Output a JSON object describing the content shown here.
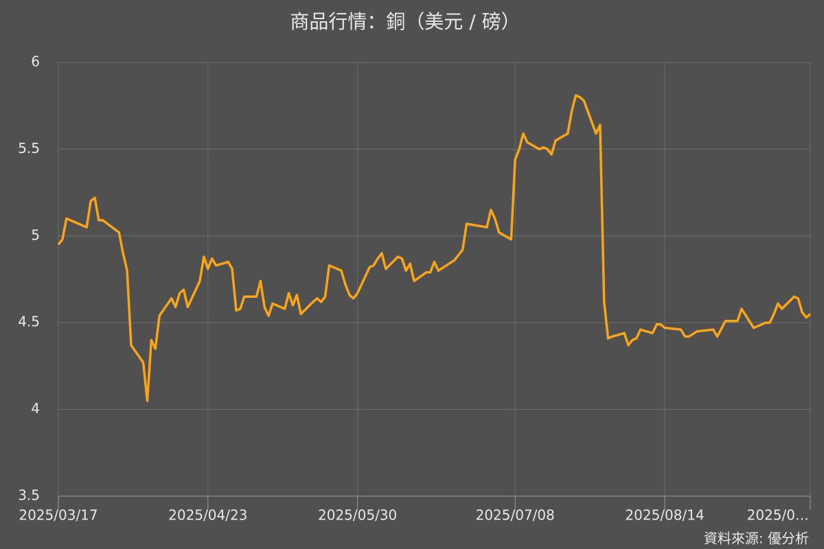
{
  "chart_data": {
    "type": "line",
    "title": "商品行情：銅（美元 / 磅）",
    "source": "資料來源: 優分析",
    "color": "#f9a51a",
    "grid": true,
    "ylim": [
      3.5,
      6
    ],
    "yticks": [
      3.5,
      4,
      4.5,
      5,
      5.5,
      6
    ],
    "xlim": [
      "2025/03/17",
      "2025/09/19"
    ],
    "xticks": [
      "2025/03/17",
      "2025/04/23",
      "2025/05/30",
      "2025/07/08",
      "2025/08/14",
      {
        "value": "2025/09/19",
        "label": "2025/0…"
      }
    ],
    "x": [
      "2025/03/17",
      "2025/03/18",
      "2025/03/19",
      "2025/03/20",
      "2025/03/24",
      "2025/03/25",
      "2025/03/26",
      "2025/03/27",
      "2025/03/28",
      "2025/04/01",
      "2025/04/02",
      "2025/04/03",
      "2025/04/04",
      "2025/04/07",
      "2025/04/08",
      "2025/04/09",
      "2025/04/10",
      "2025/04/11",
      "2025/04/14",
      "2025/04/15",
      "2025/04/16",
      "2025/04/17",
      "2025/04/18",
      "2025/04/21",
      "2025/04/22",
      "2025/04/23",
      "2025/04/24",
      "2025/04/25",
      "2025/04/28",
      "2025/04/29",
      "2025/04/30",
      "2025/05/01",
      "2025/05/02",
      "2025/05/05",
      "2025/05/06",
      "2025/05/07",
      "2025/05/08",
      "2025/05/09",
      "2025/05/12",
      "2025/05/13",
      "2025/05/14",
      "2025/05/15",
      "2025/05/16",
      "2025/05/19",
      "2025/05/20",
      "2025/05/21",
      "2025/05/22",
      "2025/05/23",
      "2025/05/26",
      "2025/05/27",
      "2025/05/28",
      "2025/05/29",
      "2025/05/30",
      "2025/06/02",
      "2025/06/03",
      "2025/06/04",
      "2025/06/05",
      "2025/06/06",
      "2025/06/09",
      "2025/06/10",
      "2025/06/11",
      "2025/06/12",
      "2025/06/13",
      "2025/06/16",
      "2025/06/17",
      "2025/06/18",
      "2025/06/19",
      "2025/06/23",
      "2025/06/24",
      "2025/06/25",
      "2025/06/26",
      "2025/07/01",
      "2025/07/02",
      "2025/07/03",
      "2025/07/04",
      "2025/07/07",
      "2025/07/08",
      "2025/07/09",
      "2025/07/10",
      "2025/07/11",
      "2025/07/14",
      "2025/07/15",
      "2025/07/16",
      "2025/07/17",
      "2025/07/18",
      "2025/07/21",
      "2025/07/22",
      "2025/07/23",
      "2025/07/24",
      "2025/07/25",
      "2025/07/28",
      "2025/07/29",
      "2025/07/30",
      "2025/07/31",
      "2025/08/01",
      "2025/08/04",
      "2025/08/05",
      "2025/08/06",
      "2025/08/07",
      "2025/08/08",
      "2025/08/11",
      "2025/08/12",
      "2025/08/13",
      "2025/08/14",
      "2025/08/18",
      "2025/08/19",
      "2025/08/20",
      "2025/08/22",
      "2025/08/26",
      "2025/08/27",
      "2025/08/29",
      "2025/09/01",
      "2025/09/02",
      "2025/09/05",
      "2025/09/08",
      "2025/09/09",
      "2025/09/10",
      "2025/09/11",
      "2025/09/12",
      "2025/09/15",
      "2025/09/16",
      "2025/09/17",
      "2025/09/18",
      "2025/09/19"
    ],
    "values": [
      4.95,
      4.98,
      5.1,
      5.09,
      5.05,
      5.2,
      5.22,
      5.09,
      5.09,
      5.02,
      4.9,
      4.8,
      4.37,
      4.27,
      4.05,
      4.4,
      4.35,
      4.54,
      4.64,
      4.59,
      4.67,
      4.69,
      4.59,
      4.74,
      4.88,
      4.81,
      4.87,
      4.83,
      4.85,
      4.81,
      4.57,
      4.58,
      4.65,
      4.65,
      4.74,
      4.59,
      4.54,
      4.61,
      4.58,
      4.67,
      4.6,
      4.66,
      4.55,
      4.62,
      4.64,
      4.62,
      4.65,
      4.83,
      4.8,
      4.72,
      4.66,
      4.64,
      4.67,
      4.82,
      4.83,
      4.87,
      4.9,
      4.81,
      4.88,
      4.87,
      4.8,
      4.84,
      4.74,
      4.79,
      4.79,
      4.85,
      4.8,
      4.86,
      4.89,
      4.92,
      5.07,
      5.05,
      5.15,
      5.1,
      5.02,
      4.98,
      5.44,
      5.5,
      5.59,
      5.54,
      5.5,
      5.51,
      5.5,
      5.47,
      5.55,
      5.59,
      5.72,
      5.81,
      5.8,
      5.78,
      5.59,
      5.64,
      4.62,
      4.41,
      4.42,
      4.44,
      4.37,
      4.4,
      4.41,
      4.46,
      4.44,
      4.49,
      4.49,
      4.47,
      4.46,
      4.42,
      4.42,
      4.45,
      4.46,
      4.42,
      4.51,
      4.51,
      4.58,
      4.47,
      4.5,
      4.5,
      4.55,
      4.61,
      4.58,
      4.65,
      4.64,
      4.56,
      4.53,
      4.55
    ]
  }
}
